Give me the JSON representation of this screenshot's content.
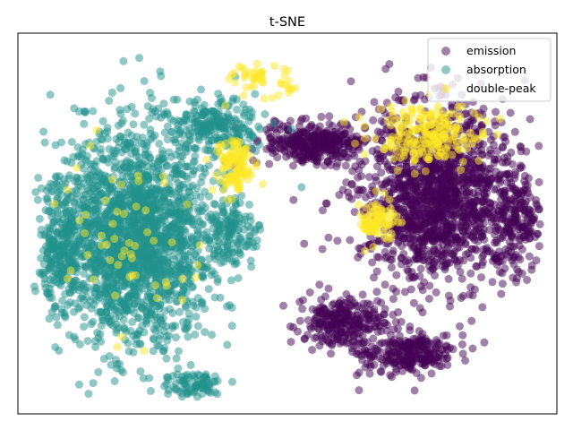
{
  "chart_data": {
    "type": "scatter",
    "title": "t-SNE",
    "xlabel": "",
    "ylabel": "",
    "axis_ticks": "hidden",
    "grid": false,
    "legend_placement": "top-right",
    "marker_alpha": 0.5,
    "series": [
      {
        "name": "emission",
        "color": "#440154",
        "clusters": [
          {
            "cx": 0.78,
            "cy": 0.42,
            "sx": 0.13,
            "sy": 0.21,
            "n": 1500
          },
          {
            "cx": 0.55,
            "cy": 0.29,
            "sx": 0.08,
            "sy": 0.05,
            "n": 350
          },
          {
            "cx": 0.6,
            "cy": 0.76,
            "sx": 0.07,
            "sy": 0.06,
            "n": 260
          },
          {
            "cx": 0.72,
            "cy": 0.84,
            "sx": 0.08,
            "sy": 0.05,
            "n": 260
          },
          {
            "cx": 0.93,
            "cy": 0.5,
            "sx": 0.04,
            "sy": 0.12,
            "n": 160
          }
        ]
      },
      {
        "name": "absorption",
        "color": "#21918c",
        "clusters": [
          {
            "cx": 0.22,
            "cy": 0.53,
            "sx": 0.13,
            "sy": 0.25,
            "n": 2000
          },
          {
            "cx": 0.37,
            "cy": 0.24,
            "sx": 0.07,
            "sy": 0.06,
            "n": 220
          },
          {
            "cx": 0.08,
            "cy": 0.55,
            "sx": 0.04,
            "sy": 0.14,
            "n": 250
          },
          {
            "cx": 0.4,
            "cy": 0.53,
            "sx": 0.04,
            "sy": 0.08,
            "n": 130
          },
          {
            "cx": 0.33,
            "cy": 0.92,
            "sx": 0.05,
            "sy": 0.03,
            "n": 90
          }
        ]
      },
      {
        "name": "double-peak",
        "color": "#fde725",
        "clusters": [
          {
            "cx": 0.76,
            "cy": 0.27,
            "sx": 0.09,
            "sy": 0.07,
            "n": 220
          },
          {
            "cx": 0.4,
            "cy": 0.35,
            "sx": 0.03,
            "sy": 0.07,
            "n": 120
          },
          {
            "cx": 0.67,
            "cy": 0.49,
            "sx": 0.03,
            "sy": 0.05,
            "n": 90
          },
          {
            "cx": 0.45,
            "cy": 0.12,
            "sx": 0.05,
            "sy": 0.04,
            "n": 50
          },
          {
            "cx": 0.2,
            "cy": 0.55,
            "sx": 0.14,
            "sy": 0.22,
            "n": 60
          }
        ]
      }
    ]
  }
}
